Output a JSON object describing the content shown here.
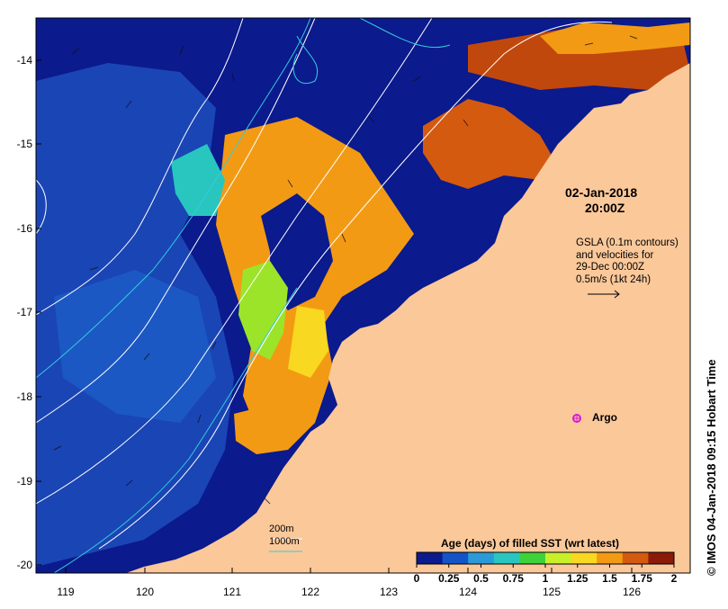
{
  "map": {
    "timestamp_line1": "02-Jan-2018",
    "timestamp_line2": "20:00Z",
    "gsla_note": [
      "GSLA (0.1m contours)",
      "and velocities for",
      "29-Dec 00:00Z",
      "0.5m/s (1kt 24h)"
    ],
    "argo_label": "Argo",
    "side_credit": "IMOS 04-Jan-2018 09:15 Hobart Time",
    "side_copyright": "©",
    "contour_legend": [
      "200m",
      "1000m"
    ],
    "colorbar": {
      "title": "Age (days) of filled SST (wrt latest)",
      "ticks": [
        "0",
        "0.25",
        "0.5",
        "0.75",
        "1",
        "1.25",
        "1.5",
        "1.75",
        "2"
      ],
      "colors": [
        "#0b1a8c",
        "#1554c8",
        "#2a9bd8",
        "#29c6c0",
        "#3dd23a",
        "#c8f028",
        "#f8d820",
        "#f39a14",
        "#d45a10",
        "#8c1a08"
      ]
    },
    "lon_ticks": [
      "119",
      "120",
      "121",
      "122",
      "123",
      "124",
      "125",
      "126"
    ],
    "lat_ticks": [
      "-14",
      "-15",
      "-16",
      "-17",
      "-18",
      "-19",
      "-20"
    ],
    "colors": {
      "ocean_deep": "#0b1a8c",
      "ocean_mid": "#1a45b5",
      "land": "#fbc89a",
      "argo": "#d41cd4",
      "contour_200": "#ffffff",
      "contour_1000": "#33ccdd"
    }
  }
}
